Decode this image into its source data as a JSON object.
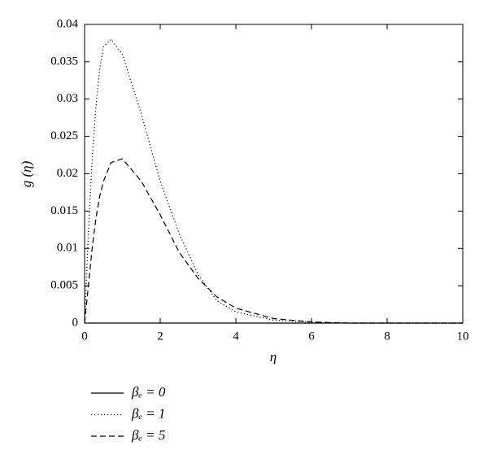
{
  "chart_data": {
    "type": "line",
    "xlabel": "η",
    "ylabel": "g (η)",
    "x": [
      0,
      0.1,
      0.2,
      0.3,
      0.4,
      0.5,
      0.7,
      1,
      1.5,
      2,
      2.5,
      3,
      3.5,
      4,
      5,
      6,
      7,
      8,
      10
    ],
    "series": [
      {
        "name": "βₑ = 0",
        "color": "#000000",
        "dash": "solid",
        "values": [
          0,
          0,
          0,
          0,
          0,
          0,
          0,
          0,
          0,
          0,
          0,
          0,
          0,
          0,
          0,
          0,
          0,
          0,
          0
        ]
      },
      {
        "name": "βₑ = 1",
        "color": "#000000",
        "dash": "dotted",
        "values": [
          0,
          0.012,
          0.022,
          0.029,
          0.034,
          0.037,
          0.038,
          0.036,
          0.028,
          0.019,
          0.012,
          0.0065,
          0.003,
          0.0015,
          0.0004,
          0.0001,
          0,
          0,
          0
        ]
      },
      {
        "name": "βₑ = 5",
        "color": "#000000",
        "dash": "dashed",
        "values": [
          0,
          0.005,
          0.01,
          0.014,
          0.017,
          0.019,
          0.0215,
          0.022,
          0.019,
          0.0145,
          0.0095,
          0.006,
          0.0035,
          0.002,
          0.0006,
          0.00015,
          0,
          0,
          0
        ]
      }
    ],
    "xlim": [
      0,
      10
    ],
    "xticks": [
      0,
      2,
      4,
      6,
      8,
      10
    ],
    "ylim": [
      0,
      0.04
    ],
    "yticks": [
      0,
      0.005,
      0.01,
      0.015,
      0.02,
      0.025,
      0.03,
      0.035,
      0.04
    ],
    "grid": false,
    "legend": "below-left"
  }
}
